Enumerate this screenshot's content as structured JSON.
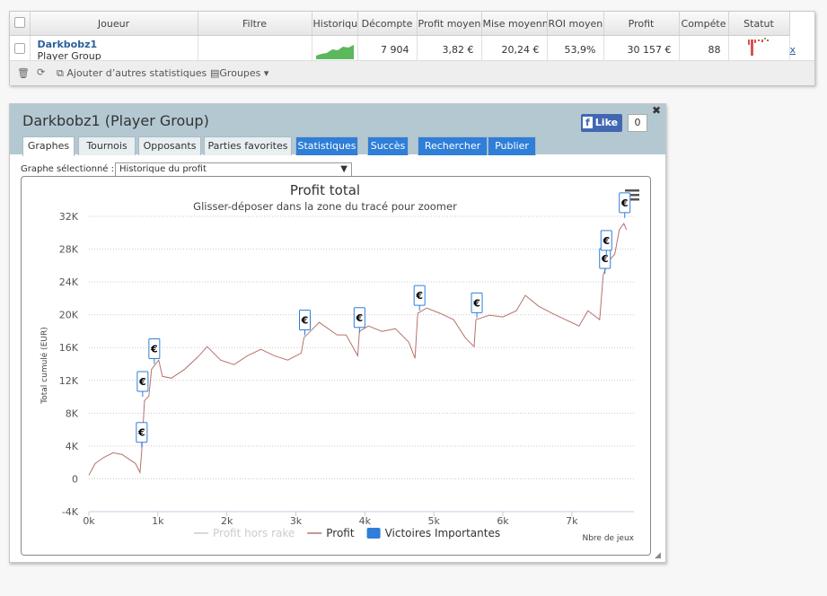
{
  "table": {
    "headers": [
      "Joueur",
      "Filtre",
      "Historiqu",
      "Décompte",
      "Profit moyen",
      "Mise moyenn",
      "ROI moyen",
      "Profit",
      "Compéte",
      "Statut"
    ],
    "rows": [
      {
        "player": "Darkbobz1",
        "group": "Player Group",
        "cells": [
          "7 904",
          "3,82 €",
          "20,24 €",
          "53,9%",
          "30 157 €",
          "88"
        ],
        "action": "x"
      }
    ]
  },
  "toolbar": {
    "add_stats": "Ajouter d’autres statistiques",
    "groups": "Groupes"
  },
  "panel": {
    "title": "Darkbobz1 (Player Group)",
    "like": "Like",
    "like_count": 0,
    "tabs": [
      "Graphes",
      "Tournois",
      "Opposants",
      "Parties favorites",
      "Statistiques",
      "Succès",
      "Rechercher",
      "Publier"
    ],
    "graph_label": "Graphe sélectionné :",
    "graph_select": "Historique du profit"
  },
  "chart_data": {
    "type": "line",
    "title": "Profit total",
    "subtitle": "Glisser-déposer dans la zone du tracé pour zoomer",
    "y_label": "Total cumulé (EUR)",
    "x_label": "Nbre de jeux",
    "x": [
      0,
      91,
      221,
      351,
      481,
      675,
      740,
      766,
      805,
      870,
      909,
      961,
      1013,
      1065,
      1195,
      1390,
      1584,
      1714,
      1909,
      2104,
      2299,
      2494,
      2688,
      2883,
      3078,
      3117,
      3208,
      3338,
      3468,
      3597,
      3727,
      3896,
      3922,
      4052,
      4247,
      4442,
      4636,
      4727,
      4766,
      4896,
      5091,
      5286,
      5455,
      5584,
      5610,
      5805,
      6000,
      6195,
      6325,
      6519,
      6714,
      6909,
      7104,
      7234,
      7403,
      7455,
      7532,
      7623,
      7688,
      7753,
      7792
    ],
    "series": [
      {
        "name": "Profit hors rake",
        "color": "#cccccc",
        "visible": false,
        "values": [
          null,
          null,
          null,
          null,
          null,
          null,
          null,
          null,
          null,
          null,
          null,
          null,
          null,
          null,
          null,
          null,
          null,
          null,
          null,
          null,
          null,
          null,
          null,
          null,
          null,
          null,
          null,
          null,
          null,
          null,
          null,
          null,
          null,
          null,
          null,
          null,
          null,
          null,
          null,
          null,
          null,
          null,
          null,
          null,
          null,
          null,
          null,
          null,
          null,
          null,
          null,
          null,
          null,
          null,
          null,
          null,
          null,
          null,
          null,
          null,
          null
        ]
      },
      {
        "name": "Profit",
        "color": "#b5736c",
        "visible": true,
        "values": [
          440,
          1860,
          2630,
          3180,
          2960,
          1860,
          770,
          3500,
          9530,
          10080,
          13370,
          13920,
          14470,
          12490,
          12270,
          13370,
          14900,
          16110,
          14470,
          13920,
          15010,
          15780,
          15010,
          14470,
          15340,
          17210,
          17970,
          19070,
          18300,
          17540,
          17540,
          15010,
          17970,
          18630,
          17970,
          18300,
          16660,
          14690,
          20170,
          20820,
          20170,
          19400,
          17210,
          16110,
          19400,
          19950,
          19730,
          20490,
          22360,
          21040,
          20170,
          19400,
          18630,
          20490,
          19400,
          24880,
          26520,
          27400,
          30360,
          31130,
          30360
        ]
      }
    ],
    "flags": {
      "name": "Victoires Importantes",
      "color": "#2f7ed8",
      "label": "€",
      "x": [
        766,
        779,
        948,
        3130,
        3922,
        4792,
        5623,
        7480,
        7500,
        7766
      ],
      "values": [
        3800,
        10000,
        14000,
        17500,
        17800,
        20500,
        19600,
        25000,
        27200,
        31800
      ]
    },
    "xlim": [
      0,
      7900
    ],
    "ylim": [
      -4000,
      32000
    ],
    "xticks": [
      {
        "value": 0,
        "label": "0k"
      },
      {
        "value": 1000,
        "label": "1k"
      },
      {
        "value": 2000,
        "label": "2k"
      },
      {
        "value": 3000,
        "label": "3k"
      },
      {
        "value": 4000,
        "label": "4k"
      },
      {
        "value": 5000,
        "label": "5k"
      },
      {
        "value": 6000,
        "label": "6k"
      },
      {
        "value": 7000,
        "label": "7k"
      }
    ],
    "yticks": [
      {
        "value": -4000,
        "label": "-4K"
      },
      0,
      {
        "value": 4000,
        "label": "4K"
      },
      {
        "value": 8000,
        "label": "8K"
      },
      {
        "value": 12000,
        "label": "12K"
      },
      {
        "value": 16000,
        "label": "16K"
      },
      {
        "value": 20000,
        "label": "20K"
      },
      {
        "value": 24000,
        "label": "24K"
      },
      {
        "value": 28000,
        "label": "28K"
      },
      {
        "value": 32000,
        "label": "32K"
      }
    ],
    "grid": true
  }
}
